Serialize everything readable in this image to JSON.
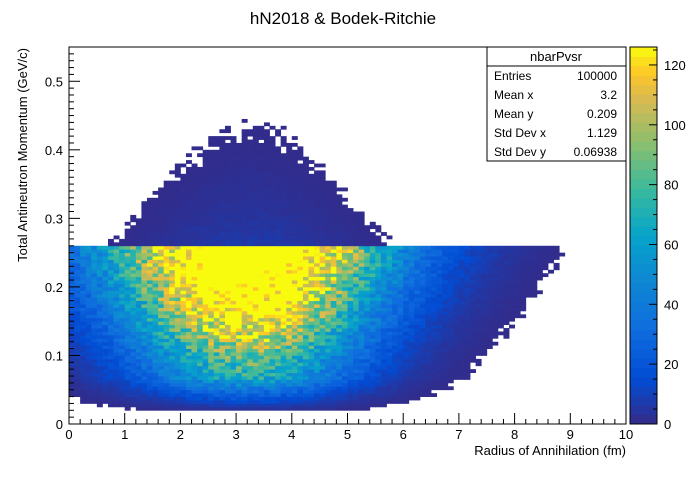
{
  "chart_data": {
    "type": "heatmap",
    "title": "hN2018 & Bodek-Ritchie",
    "xlabel": "Radius of Annihilation (fm)",
    "ylabel": "Total Antineutron Momentum (GeV/c)",
    "xlim": [
      0,
      10
    ],
    "ylim": [
      0,
      0.55
    ],
    "x_ticks": [
      "0",
      "1",
      "2",
      "3",
      "4",
      "5",
      "6",
      "7",
      "8",
      "9",
      "10"
    ],
    "y_ticks": [
      "0",
      "0.1",
      "0.2",
      "0.3",
      "0.4",
      "0.5"
    ],
    "z_range": [
      0,
      126
    ],
    "z_ticks": [
      "0",
      "20",
      "40",
      "60",
      "80",
      "100",
      "120"
    ],
    "colormap": "parula",
    "x_bins": 100,
    "y_bins": 110,
    "approximate_shape": {
      "low_momentum_core": {
        "x_center": 3.2,
        "y_upper_edge": 0.26,
        "peak_x": 3.0,
        "peak_y": 0.24,
        "peak_count": 126
      },
      "high_momentum_tail": {
        "x_center": 3.25,
        "y_max": 0.5
      }
    },
    "stats_box": {
      "name": "nbarPvsr",
      "rows": [
        {
          "label": "Entries",
          "value": "100000"
        },
        {
          "label": "Mean x",
          "value": "3.2"
        },
        {
          "label": "Mean y",
          "value": "0.209"
        },
        {
          "label": "Std Dev x",
          "value": "1.129"
        },
        {
          "label": "Std Dev y",
          "value": "0.06938"
        }
      ]
    }
  }
}
